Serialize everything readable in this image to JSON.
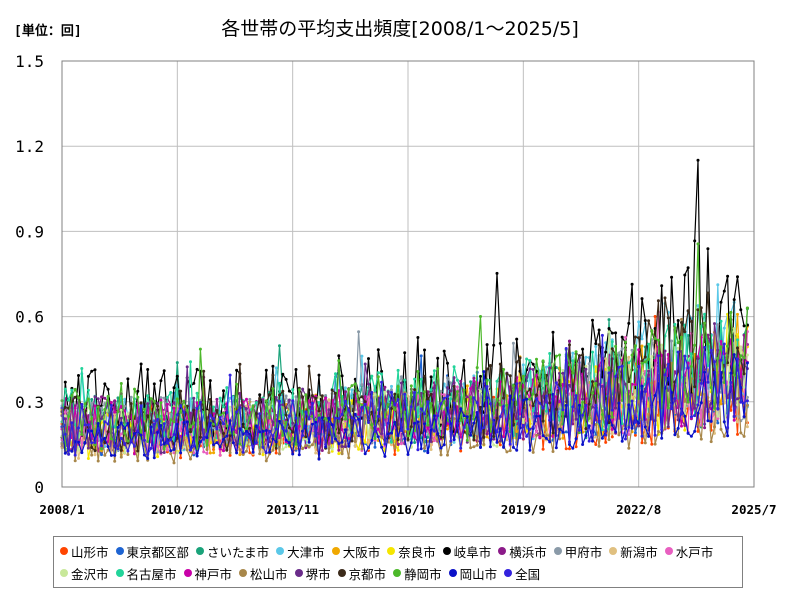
{
  "unit_label": "[単位：回]",
  "colors": {
    "grid": "#bfbfbf",
    "axis": "#808080"
  },
  "chart_data": {
    "type": "line",
    "title": "各世帯の平均支出頻度[2008/1～2025/5]",
    "xlabel": "",
    "ylabel": "",
    "x_start": "2008/1",
    "x_end": "2025/7",
    "x_ticks": [
      "2008/1",
      "2010/12",
      "2013/11",
      "2016/10",
      "2019/9",
      "2022/8",
      "2025/7"
    ],
    "ylim": [
      0,
      1.5
    ],
    "y_ticks": [
      "0",
      "0.3",
      "0.6",
      "0.9",
      "1.2",
      "1.5"
    ],
    "grid": true,
    "legend_position": "bottom",
    "series": [
      {
        "name": "山形市",
        "color": "#ff4500",
        "anchors": [
          [
            2008.0,
            0.2
          ],
          [
            2012.0,
            0.18
          ],
          [
            2016.0,
            0.2
          ],
          [
            2019.0,
            0.22
          ],
          [
            2022.0,
            0.25
          ],
          [
            2025.4,
            0.33
          ]
        ]
      },
      {
        "name": "東京都区部",
        "color": "#1e64d2",
        "anchors": [
          [
            2008.0,
            0.18
          ],
          [
            2012.0,
            0.19
          ],
          [
            2016.0,
            0.22
          ],
          [
            2019.0,
            0.24
          ],
          [
            2022.0,
            0.3
          ],
          [
            2025.4,
            0.4
          ]
        ]
      },
      {
        "name": "さいたま市",
        "color": "#1aa37a",
        "anchors": [
          [
            2008.0,
            0.22
          ],
          [
            2012.0,
            0.22
          ],
          [
            2016.0,
            0.26
          ],
          [
            2019.0,
            0.27
          ],
          [
            2022.0,
            0.32
          ],
          [
            2025.4,
            0.42
          ]
        ]
      },
      {
        "name": "大津市",
        "color": "#5bc8e8",
        "anchors": [
          [
            2008.0,
            0.22
          ],
          [
            2012.0,
            0.24
          ],
          [
            2016.0,
            0.26
          ],
          [
            2019.0,
            0.28
          ],
          [
            2022.0,
            0.36
          ],
          [
            2024.3,
            0.55
          ],
          [
            2025.4,
            0.48
          ]
        ]
      },
      {
        "name": "大阪市",
        "color": "#f0a800",
        "anchors": [
          [
            2008.0,
            0.2
          ],
          [
            2012.0,
            0.2
          ],
          [
            2016.0,
            0.24
          ],
          [
            2019.0,
            0.27
          ],
          [
            2022.0,
            0.33
          ],
          [
            2025.4,
            0.46
          ]
        ]
      },
      {
        "name": "奈良市",
        "color": "#f5e600",
        "anchors": [
          [
            2008.0,
            0.18
          ],
          [
            2012.0,
            0.19
          ],
          [
            2016.0,
            0.22
          ],
          [
            2019.0,
            0.26
          ],
          [
            2022.0,
            0.3
          ],
          [
            2025.4,
            0.4
          ]
        ]
      },
      {
        "name": "岐阜市",
        "color": "#000000",
        "anchors": [
          [
            2008.0,
            0.3
          ],
          [
            2012.0,
            0.3
          ],
          [
            2016.0,
            0.34
          ],
          [
            2019.0,
            0.36
          ],
          [
            2022.0,
            0.42
          ],
          [
            2024.0,
            0.6
          ],
          [
            2025.4,
            0.55
          ]
        ]
      },
      {
        "name": "横浜市",
        "color": "#8b1a89",
        "anchors": [
          [
            2008.0,
            0.22
          ],
          [
            2012.0,
            0.22
          ],
          [
            2016.0,
            0.24
          ],
          [
            2019.0,
            0.28
          ],
          [
            2022.0,
            0.34
          ],
          [
            2025.4,
            0.4
          ]
        ]
      },
      {
        "name": "甲府市",
        "color": "#8a9aa8",
        "anchors": [
          [
            2008.0,
            0.22
          ],
          [
            2012.0,
            0.22
          ],
          [
            2016.0,
            0.26
          ],
          [
            2019.0,
            0.28
          ],
          [
            2022.0,
            0.34
          ],
          [
            2025.4,
            0.42
          ]
        ]
      },
      {
        "name": "新潟市",
        "color": "#e0c080",
        "anchors": [
          [
            2008.0,
            0.18
          ],
          [
            2012.0,
            0.2
          ],
          [
            2016.0,
            0.22
          ],
          [
            2019.0,
            0.24
          ],
          [
            2022.0,
            0.28
          ],
          [
            2025.4,
            0.36
          ]
        ]
      },
      {
        "name": "水戸市",
        "color": "#e85fc0",
        "anchors": [
          [
            2008.0,
            0.2
          ],
          [
            2012.0,
            0.2
          ],
          [
            2016.0,
            0.22
          ],
          [
            2019.0,
            0.26
          ],
          [
            2022.0,
            0.3
          ],
          [
            2025.4,
            0.38
          ]
        ]
      },
      {
        "name": "金沢市",
        "color": "#c8e89a",
        "anchors": [
          [
            2008.0,
            0.2
          ],
          [
            2012.0,
            0.2
          ],
          [
            2016.0,
            0.24
          ],
          [
            2019.0,
            0.26
          ],
          [
            2022.0,
            0.32
          ],
          [
            2025.4,
            0.4
          ]
        ]
      },
      {
        "name": "名古屋市",
        "color": "#22d49a",
        "anchors": [
          [
            2008.0,
            0.24
          ],
          [
            2012.0,
            0.24
          ],
          [
            2016.0,
            0.28
          ],
          [
            2019.0,
            0.3
          ],
          [
            2022.0,
            0.36
          ],
          [
            2025.4,
            0.45
          ]
        ]
      },
      {
        "name": "神戸市",
        "color": "#c800a8",
        "anchors": [
          [
            2008.0,
            0.2
          ],
          [
            2012.0,
            0.22
          ],
          [
            2016.0,
            0.24
          ],
          [
            2019.0,
            0.28
          ],
          [
            2022.0,
            0.32
          ],
          [
            2025.4,
            0.4
          ]
        ]
      },
      {
        "name": "松山市",
        "color": "#a8874a",
        "anchors": [
          [
            2008.0,
            0.14
          ],
          [
            2012.0,
            0.16
          ],
          [
            2016.0,
            0.18
          ],
          [
            2019.0,
            0.2
          ],
          [
            2022.0,
            0.24
          ],
          [
            2025.4,
            0.3
          ]
        ]
      },
      {
        "name": "堺市",
        "color": "#6a2c8a",
        "anchors": [
          [
            2008.0,
            0.22
          ],
          [
            2012.0,
            0.22
          ],
          [
            2016.0,
            0.26
          ],
          [
            2019.0,
            0.28
          ],
          [
            2022.0,
            0.34
          ],
          [
            2025.4,
            0.42
          ]
        ]
      },
      {
        "name": "京都市",
        "color": "#3b2a1a",
        "anchors": [
          [
            2008.0,
            0.22
          ],
          [
            2012.0,
            0.22
          ],
          [
            2016.0,
            0.26
          ],
          [
            2019.0,
            0.3
          ],
          [
            2022.0,
            0.38
          ],
          [
            2024.0,
            0.55
          ],
          [
            2025.4,
            0.5
          ]
        ]
      },
      {
        "name": "静岡市",
        "color": "#4cb82a",
        "anchors": [
          [
            2008.0,
            0.24
          ],
          [
            2012.0,
            0.24
          ],
          [
            2016.0,
            0.28
          ],
          [
            2019.0,
            0.3
          ],
          [
            2022.0,
            0.36
          ],
          [
            2025.4,
            0.44
          ]
        ]
      },
      {
        "name": "岡山市",
        "color": "#0a10c8",
        "anchors": [
          [
            2008.0,
            0.16
          ],
          [
            2012.0,
            0.16
          ],
          [
            2016.0,
            0.18
          ],
          [
            2019.0,
            0.22
          ],
          [
            2022.0,
            0.26
          ],
          [
            2025.4,
            0.34
          ]
        ]
      },
      {
        "name": "全国",
        "color": "#3322dd",
        "anchors": [
          [
            2008.0,
            0.2
          ],
          [
            2012.0,
            0.21
          ],
          [
            2016.0,
            0.23
          ],
          [
            2019.0,
            0.25
          ],
          [
            2022.0,
            0.3
          ],
          [
            2025.4,
            0.38
          ]
        ]
      }
    ]
  }
}
